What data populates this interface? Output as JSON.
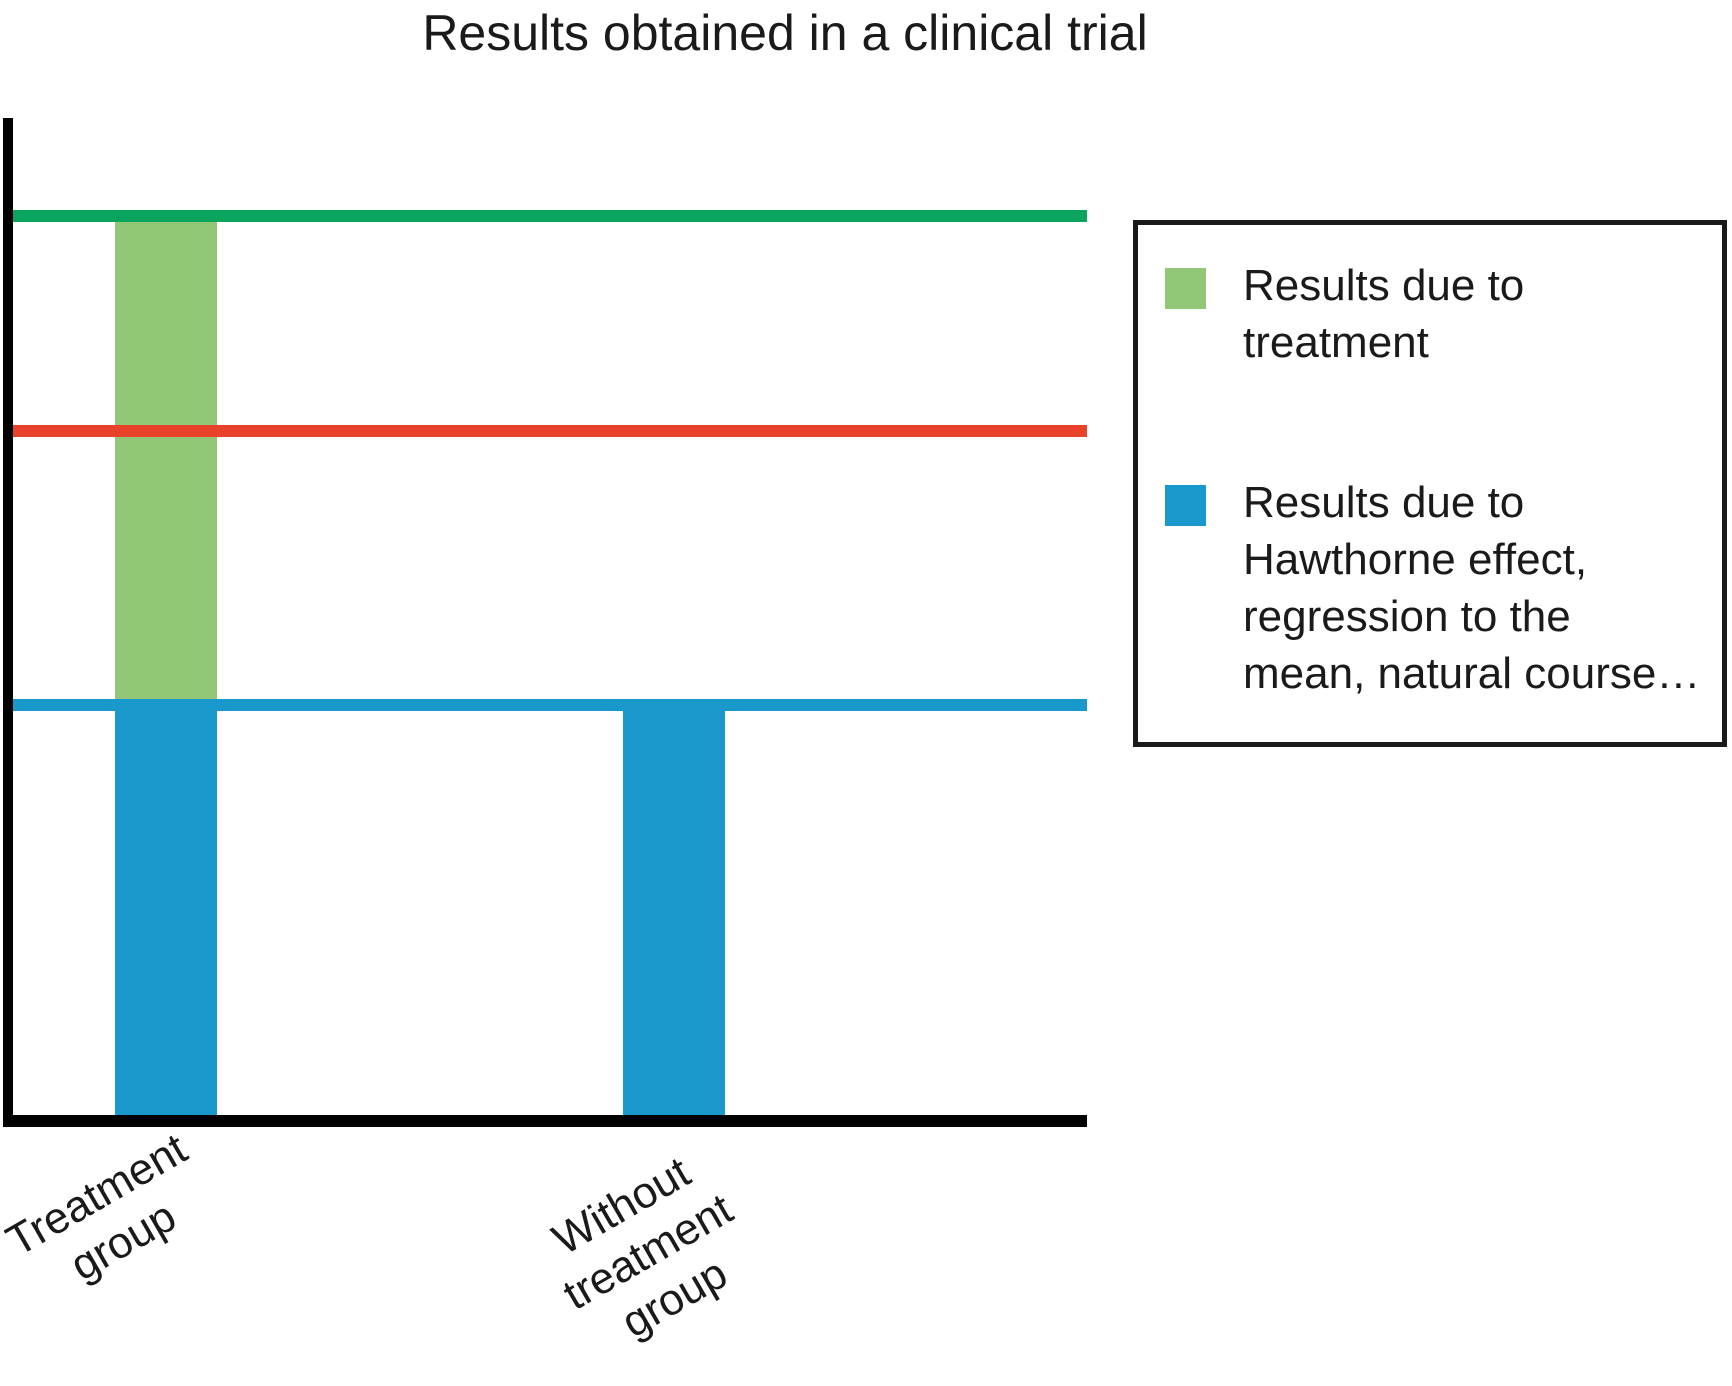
{
  "chart_data": {
    "type": "bar",
    "stacked": true,
    "title": "Results obtained in a clinical trial",
    "xlabel": "",
    "ylabel": "",
    "y_ticks": [],
    "ylim": [
      0,
      100
    ],
    "grid": false,
    "legend_position": "right",
    "categories": [
      "Treatment group",
      "Without treatment group"
    ],
    "x_tick_label_lines": [
      [
        "Treatment",
        "group"
      ],
      [
        "Without",
        "treatment",
        "group"
      ]
    ],
    "series": [
      {
        "name": "Results due to Hawthorne effect, regression to the mean, natural course…",
        "color": "#1998cb",
        "values": [
          41,
          41
        ]
      },
      {
        "name": "Results due to treatment",
        "color": "#92c777",
        "values": [
          49,
          0
        ]
      }
    ],
    "reference_lines": [
      {
        "level": 90,
        "color": "#0aa45c"
      },
      {
        "level": 68.5,
        "color": "#e8422b"
      },
      {
        "level": 41,
        "color": "#1998cb"
      }
    ]
  },
  "legend": {
    "items": [
      {
        "color": "#92c777",
        "lines": [
          "Results due to",
          "treatment"
        ]
      },
      {
        "color": "#1998cb",
        "lines": [
          "Results due to",
          "Hawthorne effect,",
          "regression to the",
          "mean, natural course…"
        ]
      }
    ]
  },
  "colors": {
    "axis": "#000000",
    "green_line": "#0aa45c",
    "red_line": "#e8422b",
    "blue": "#1998cb",
    "light_green_bar": "#92c777"
  }
}
